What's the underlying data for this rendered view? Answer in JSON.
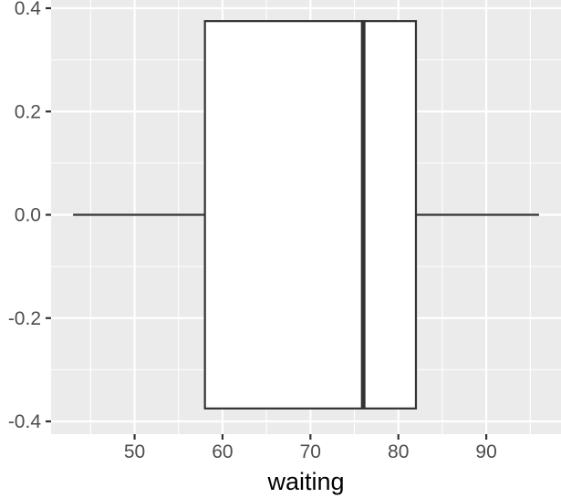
{
  "chart_data": {
    "type": "boxplot",
    "title": "",
    "xlabel": "waiting",
    "ylabel": "",
    "xlim": [
      40.5,
      98.5
    ],
    "ylim": [
      -0.4,
      0.4
    ],
    "x_ticks": [
      50,
      60,
      70,
      80,
      90
    ],
    "x_tick_labels": [
      "50",
      "60",
      "70",
      "80",
      "90"
    ],
    "y_ticks": [
      -0.4,
      -0.2,
      0.0,
      0.2,
      0.4
    ],
    "y_tick_labels": [
      "-0.4",
      "-0.2",
      "0.0",
      "0.2",
      "0.4"
    ],
    "grid": true,
    "box": {
      "min": 43,
      "q1": 58,
      "median": 76,
      "q3": 82,
      "max": 96,
      "ymin": -0.375,
      "ymax": 0.375
    },
    "colors": {
      "panel": "#ebebeb",
      "grid": "#ffffff",
      "box_fill": "#ffffff",
      "box_line": "#333333",
      "tick_text": "#4d4d4d"
    }
  }
}
